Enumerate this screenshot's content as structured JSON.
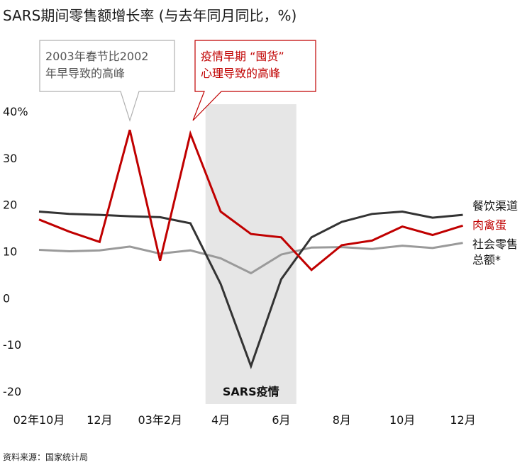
{
  "title": "SARS期间零售额增长率 (与去年同月同比，%)",
  "source": "资料来源：国家统计局",
  "chart_data": {
    "type": "line",
    "title": "SARS期间零售额增长率 (与去年同月同比，%)",
    "x": [
      "2002-10",
      "2002-11",
      "2002-12",
      "2003-01",
      "2003-02",
      "2003-03",
      "2003-04",
      "2003-05",
      "2003-06",
      "2003-07",
      "2003-08",
      "2003-09",
      "2003-10",
      "2003-11",
      "2003-12"
    ],
    "x_tick_labels": [
      {
        "at": 0,
        "label": "02年10月"
      },
      {
        "at": 2,
        "label": "12月"
      },
      {
        "at": 4,
        "label": "03年2月"
      },
      {
        "at": 6,
        "label": "4月"
      },
      {
        "at": 8,
        "label": "6月"
      },
      {
        "at": 10,
        "label": "8月"
      },
      {
        "at": 12,
        "label": "10月"
      },
      {
        "at": 14,
        "label": "12月"
      }
    ],
    "ylim": [
      -20,
      40
    ],
    "y_ticks": [
      {
        "value": 40,
        "label": "40%"
      },
      {
        "value": 30,
        "label": "30"
      },
      {
        "value": 20,
        "label": "20"
      },
      {
        "value": 10,
        "label": "10"
      },
      {
        "value": 0,
        "label": "0"
      },
      {
        "value": -10,
        "label": "-10"
      },
      {
        "value": -20,
        "label": "-20"
      }
    ],
    "grid": false,
    "series": [
      {
        "name": "餐饮渠道",
        "color": "#333333",
        "values": [
          18.5,
          18.0,
          17.8,
          17.5,
          17.3,
          16.0,
          3.0,
          -14.6,
          4.0,
          13.0,
          16.3,
          18.0,
          18.5,
          17.2,
          17.8
        ]
      },
      {
        "name": "肉禽蛋",
        "color": "#c00000",
        "values": [
          16.8,
          14.2,
          12.0,
          36.0,
          8.0,
          35.2,
          18.5,
          13.7,
          13.0,
          6.0,
          11.3,
          12.3,
          15.3,
          13.5,
          15.5
        ]
      },
      {
        "name": "社会零售总额*",
        "color": "#9a9a9a",
        "values": [
          10.3,
          10.0,
          10.2,
          11.0,
          9.5,
          10.2,
          8.5,
          5.3,
          9.3,
          10.8,
          10.9,
          10.5,
          11.2,
          10.7,
          11.8
        ]
      }
    ],
    "legend_placement": "right, at line ends",
    "shaded_region": {
      "from": 5.5,
      "to": 8.5,
      "label": "SARS疫情",
      "color": "#e6e6e6"
    },
    "annotations": [
      {
        "lines": [
          "2003年春节比2002",
          "年早导致的高峰"
        ],
        "points_to": {
          "x": 3,
          "value": 36.0
        },
        "border_color": "#b0b0b0",
        "text_color": "#555555"
      },
      {
        "lines": [
          "疫情早期 “囤货”",
          "心理导致的高峰"
        ],
        "points_to": {
          "x": 5,
          "value": 35.2
        },
        "border_color": "#c00000",
        "text_color": "#c00000"
      }
    ]
  }
}
